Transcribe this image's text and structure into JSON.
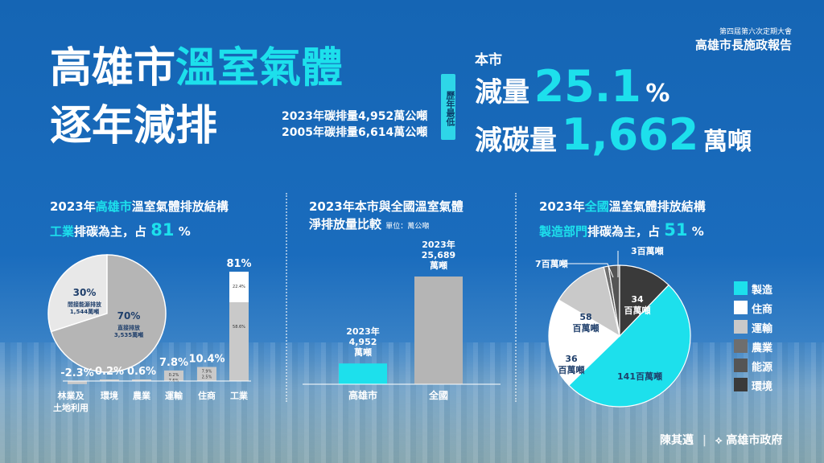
{
  "header": {
    "org_small": "第四屆第六次定期大會",
    "org_report": "高雄市長施政報告",
    "title_part1": "高雄市",
    "title_highlight": "溫室氣體",
    "title_line2": "逐年減排",
    "stat_line1": "2023年碳排量4,952萬公噸",
    "stat_line2": "2005年碳排量6,614萬公噸",
    "badge": "歷年最低"
  },
  "headline": {
    "city_label": "本市",
    "reduction_label": "減量",
    "reduction_value": "25.1",
    "reduction_unit": "%",
    "carbon_label": "減碳量",
    "carbon_value": "1,662",
    "carbon_unit": "萬噸"
  },
  "panel1": {
    "title_a": "2023年",
    "title_b": "高雄市",
    "title_c": "溫室氣體排放結構",
    "sub_a": "工業",
    "sub_b": "排碳為主，占",
    "sub_c": "81",
    "sub_d": "%"
  },
  "panel2": {
    "title_line1": "2023年本市與全國溫室氣體",
    "title_line2": "淨排放量比較",
    "unit": "單位：萬公噸"
  },
  "panel3": {
    "title_a": "2023年",
    "title_b": "全國",
    "title_c": "溫室氣體排放結構",
    "sub_a": "製造部門",
    "sub_b": "排碳為主，占",
    "sub_c": "51",
    "sub_d": "%"
  },
  "colors": {
    "cyan": "#1de0ec",
    "gray": "#b5b5b5",
    "light_gray": "#c9c9c9",
    "dark_gray": "#6e6e6e",
    "darker_gray": "#555555",
    "darkest": "#3a3a3a",
    "white": "#ffffff"
  },
  "chart_data": [
    {
      "type": "pie",
      "slices": [
        {
          "label": "間接能源排放 1,544萬噸",
          "pct": "30%",
          "value": 30
        },
        {
          "label": "直接排放 3,535萬噸",
          "pct": "70%",
          "value": 70
        }
      ],
      "labels": {
        "s1_pct": "30%",
        "s1_l1": "間接能源排放",
        "s1_l2": "1,544萬噸",
        "s2_pct": "70%",
        "s2_l1": "直接排放",
        "s2_l2": "3,535萬噸"
      }
    },
    {
      "type": "bar",
      "categories": [
        "林業及土地利用",
        "環境",
        "農業",
        "運輸",
        "住商",
        "工業"
      ],
      "category_lines": [
        [
          "林業及",
          "土地利用"
        ],
        [
          "環境"
        ],
        [
          "農業"
        ],
        [
          "運輸"
        ],
        [
          "住商"
        ],
        [
          "工業"
        ]
      ],
      "values": [
        -2.3,
        0.2,
        0.6,
        7.8,
        10.4,
        81
      ],
      "value_labels": [
        "-2.3%",
        "0.2%",
        "0.6%",
        "7.8%",
        "10.4%",
        "81%"
      ],
      "stacked_breakdown": {
        "運輸": {
          "top": "0.2%",
          "bottom": "7.6%"
        },
        "住商": {
          "top": "7.9%",
          "bottom": "2.5%"
        },
        "工業": {
          "top": "22.4%",
          "bottom": "58.6%"
        }
      },
      "ylim": [
        -3,
        81
      ]
    },
    {
      "type": "bar",
      "categories": [
        "高雄市",
        "全國"
      ],
      "values": [
        4952,
        25689
      ],
      "value_labels": [
        [
          "2023年",
          "4,952",
          "萬噸"
        ],
        [
          "2023年",
          "25,689",
          "萬噸"
        ]
      ],
      "ylim": [
        0,
        25689
      ]
    },
    {
      "type": "pie",
      "legend": [
        "製造",
        "住商",
        "運輸",
        "農業",
        "能源",
        "環境"
      ],
      "values": [
        141,
        58,
        36,
        3,
        7,
        34
      ],
      "slices": [
        {
          "name": "製造",
          "value": 141,
          "label": [
            "141百萬噸"
          ]
        },
        {
          "name": "住商",
          "value": 58,
          "label": [
            "58",
            "百萬噸"
          ]
        },
        {
          "name": "運輸",
          "value": 36,
          "label": [
            "36",
            "百萬噸"
          ]
        },
        {
          "name": "農業",
          "value": 3,
          "label": [
            "3百萬噸"
          ]
        },
        {
          "name": "能源",
          "value": 7,
          "label": [
            "7百萬噸"
          ]
        },
        {
          "name": "環境",
          "value": 34,
          "label": [
            "34",
            "百萬噸"
          ]
        }
      ]
    }
  ],
  "footer": {
    "mayor": "陳其邁",
    "separator": "|",
    "gov": "高雄市政府"
  }
}
